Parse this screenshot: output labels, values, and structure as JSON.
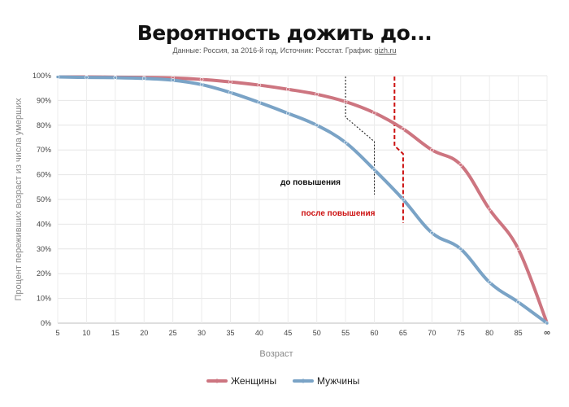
{
  "header": {
    "title": "Вероятность дожить до...",
    "subtitle_prefix": "Данные: Россия, за 2016-й год, Источник: Росстат. График: ",
    "subtitle_link": "gizh.ru"
  },
  "chart_data": {
    "type": "line",
    "xlabel": "Возраст",
    "ylabel": "Процент переживших возраст из числа умерших",
    "categories": [
      "5",
      "10",
      "15",
      "20",
      "25",
      "30",
      "35",
      "40",
      "45",
      "50",
      "55",
      "60",
      "65",
      "70",
      "75",
      "80",
      "85",
      "∞"
    ],
    "y_ticks": [
      "0%",
      "10%",
      "20%",
      "30%",
      "40%",
      "50%",
      "60%",
      "70%",
      "80%",
      "90%",
      "100%"
    ],
    "ylim": [
      0,
      100
    ],
    "grid": true,
    "legend_position": "bottom",
    "series": [
      {
        "name": "Женщины",
        "color": "#cd7580",
        "values": [
          99.5,
          99.5,
          99.4,
          99.3,
          99.1,
          98.5,
          97.5,
          96.2,
          94.5,
          92.5,
          89.5,
          85,
          78.5,
          70,
          64,
          46,
          30,
          0
        ]
      },
      {
        "name": "Мужчины",
        "color": "#7aa3c6",
        "values": [
          99.5,
          99.3,
          99.2,
          98.9,
          98.2,
          96.4,
          93.2,
          89.2,
          84.8,
          80,
          73,
          62,
          50,
          36.5,
          30,
          16.5,
          8.5,
          0
        ]
      }
    ],
    "annotations": [
      {
        "label": "до повышения",
        "color": "#111111",
        "age_from": 55,
        "age_to": 60
      },
      {
        "label": "после повышения",
        "color": "#cc1111",
        "age_from": 63.5,
        "age_to": 65
      }
    ]
  }
}
